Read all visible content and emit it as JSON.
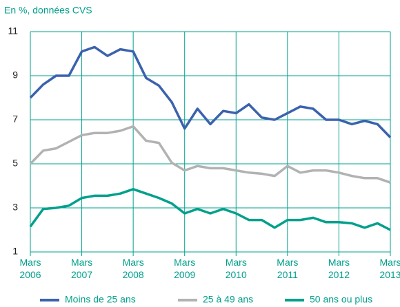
{
  "chart_data": {
    "type": "line",
    "title": "En %, données CVS",
    "categories": [
      "Mars 2006",
      null,
      null,
      null,
      "Mars 2007",
      null,
      null,
      null,
      "Mars 2008",
      null,
      null,
      null,
      "Mars 2009",
      null,
      null,
      null,
      "Mars 2010",
      null,
      null,
      null,
      "Mars 2011",
      null,
      null,
      null,
      "Mars 2012",
      null,
      null,
      null,
      "Mars 2013"
    ],
    "series": [
      {
        "name": "Moins de 25 ans",
        "color": "#3a62ad",
        "values": [
          8.0,
          8.6,
          9.0,
          9.0,
          10.1,
          10.3,
          9.9,
          10.2,
          10.1,
          8.9,
          8.55,
          7.8,
          6.6,
          7.5,
          6.8,
          7.4,
          7.3,
          7.7,
          7.1,
          7.0,
          7.3,
          7.6,
          7.5,
          7.0,
          7.0,
          6.8,
          6.95,
          6.8,
          6.2
        ]
      },
      {
        "name": "25 à 49 ans",
        "color": "#b2b2b2",
        "values": [
          5.0,
          5.6,
          5.7,
          6.0,
          6.3,
          6.4,
          6.4,
          6.5,
          6.7,
          6.05,
          5.95,
          5.05,
          4.7,
          4.9,
          4.8,
          4.8,
          4.7,
          4.6,
          4.55,
          4.45,
          4.9,
          4.6,
          4.7,
          4.7,
          4.6,
          4.45,
          4.35,
          4.35,
          4.15
        ]
      },
      {
        "name": "50 ans ou plus",
        "color": "#00a08c",
        "values": [
          2.15,
          2.95,
          3.0,
          3.1,
          3.45,
          3.55,
          3.55,
          3.65,
          3.85,
          3.65,
          3.45,
          3.2,
          2.75,
          2.95,
          2.75,
          2.95,
          2.75,
          2.45,
          2.45,
          2.1,
          2.45,
          2.45,
          2.55,
          2.35,
          2.35,
          2.3,
          2.1,
          2.3,
          2.0
        ]
      }
    ],
    "ylim": [
      1,
      11
    ],
    "yticks": [
      1,
      3,
      5,
      7,
      9,
      11
    ],
    "grid": true,
    "grid_color": "#00a08c",
    "legend": "bottom"
  }
}
